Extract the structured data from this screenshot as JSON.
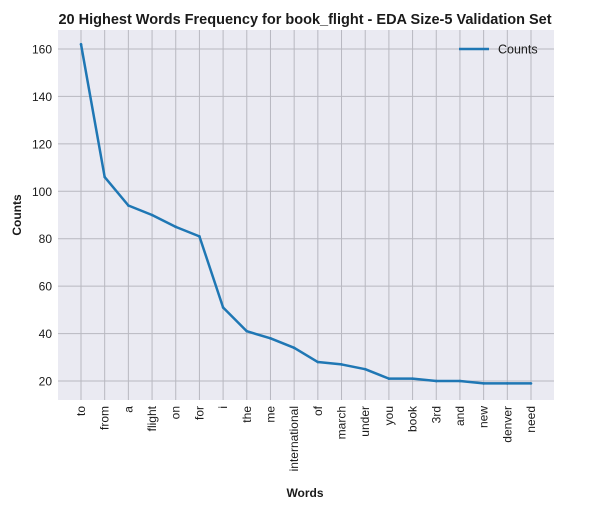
{
  "chart_data": {
    "type": "line",
    "title": "20 Highest Words Frequency for book_flight - EDA Size-5 Validation Set",
    "xlabel": "Words",
    "ylabel": "Counts",
    "categories": [
      "to",
      "from",
      "a",
      "flight",
      "on",
      "for",
      "i",
      "the",
      "me",
      "international",
      "of",
      "march",
      "under",
      "you",
      "book",
      "3rd",
      "and",
      "new",
      "denver",
      "need"
    ],
    "series": [
      {
        "name": "Counts",
        "values": [
          162,
          106,
          94,
          90,
          85,
          81,
          51,
          41,
          38,
          34,
          28,
          27,
          25,
          21,
          21,
          20,
          20,
          19,
          19,
          19
        ]
      }
    ],
    "ylim": [
      12,
      168
    ],
    "yticks": [
      20,
      40,
      60,
      80,
      100,
      120,
      140,
      160
    ],
    "grid": true,
    "legend": "top-right",
    "colors": {
      "line": "#1f77b4",
      "background": "#eaeaf2",
      "grid": "#b8b8c0"
    }
  }
}
